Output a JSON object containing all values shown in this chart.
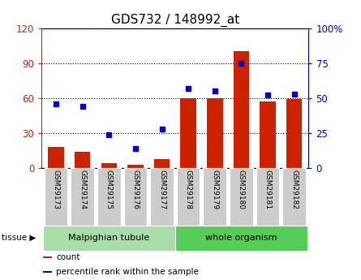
{
  "title": "GDS732 / 148992_at",
  "categories": [
    "GSM29173",
    "GSM29174",
    "GSM29175",
    "GSM29176",
    "GSM29177",
    "GSM29178",
    "GSM29179",
    "GSM29180",
    "GSM29181",
    "GSM29182"
  ],
  "bar_values": [
    18,
    14,
    4,
    3,
    8,
    60,
    60,
    100,
    57,
    59
  ],
  "percentile_values": [
    46,
    44,
    24,
    14,
    28,
    57,
    55,
    75,
    52,
    53
  ],
  "bar_color": "#cc2200",
  "dot_color": "#0000cc",
  "left_ylim": [
    0,
    120
  ],
  "right_ylim": [
    0,
    100
  ],
  "left_yticks": [
    0,
    30,
    60,
    90,
    120
  ],
  "right_yticks": [
    0,
    25,
    50,
    75,
    100
  ],
  "right_yticklabels": [
    "0",
    "25",
    "50",
    "75",
    "100%"
  ],
  "tissue_groups": [
    {
      "label": "Malpighian tubule",
      "start": 0,
      "end": 5,
      "color": "#aaddaa"
    },
    {
      "label": "whole organism",
      "start": 5,
      "end": 10,
      "color": "#55cc55"
    }
  ],
  "tissue_label": "tissue",
  "legend_items": [
    {
      "label": "count",
      "color": "#cc2200"
    },
    {
      "label": "percentile rank within the sample",
      "color": "#0000cc"
    }
  ],
  "grid_color": "#000000",
  "background_color": "#ffffff",
  "plot_bg_color": "#ffffff",
  "title_fontsize": 11,
  "axis_label_color_left": "#cc2200",
  "axis_label_color_right": "#0000cc",
  "xlabel_box_color": "#cccccc",
  "xlabel_fontsize": 6.5,
  "tissue_fontsize": 8,
  "legend_fontsize": 7.5
}
